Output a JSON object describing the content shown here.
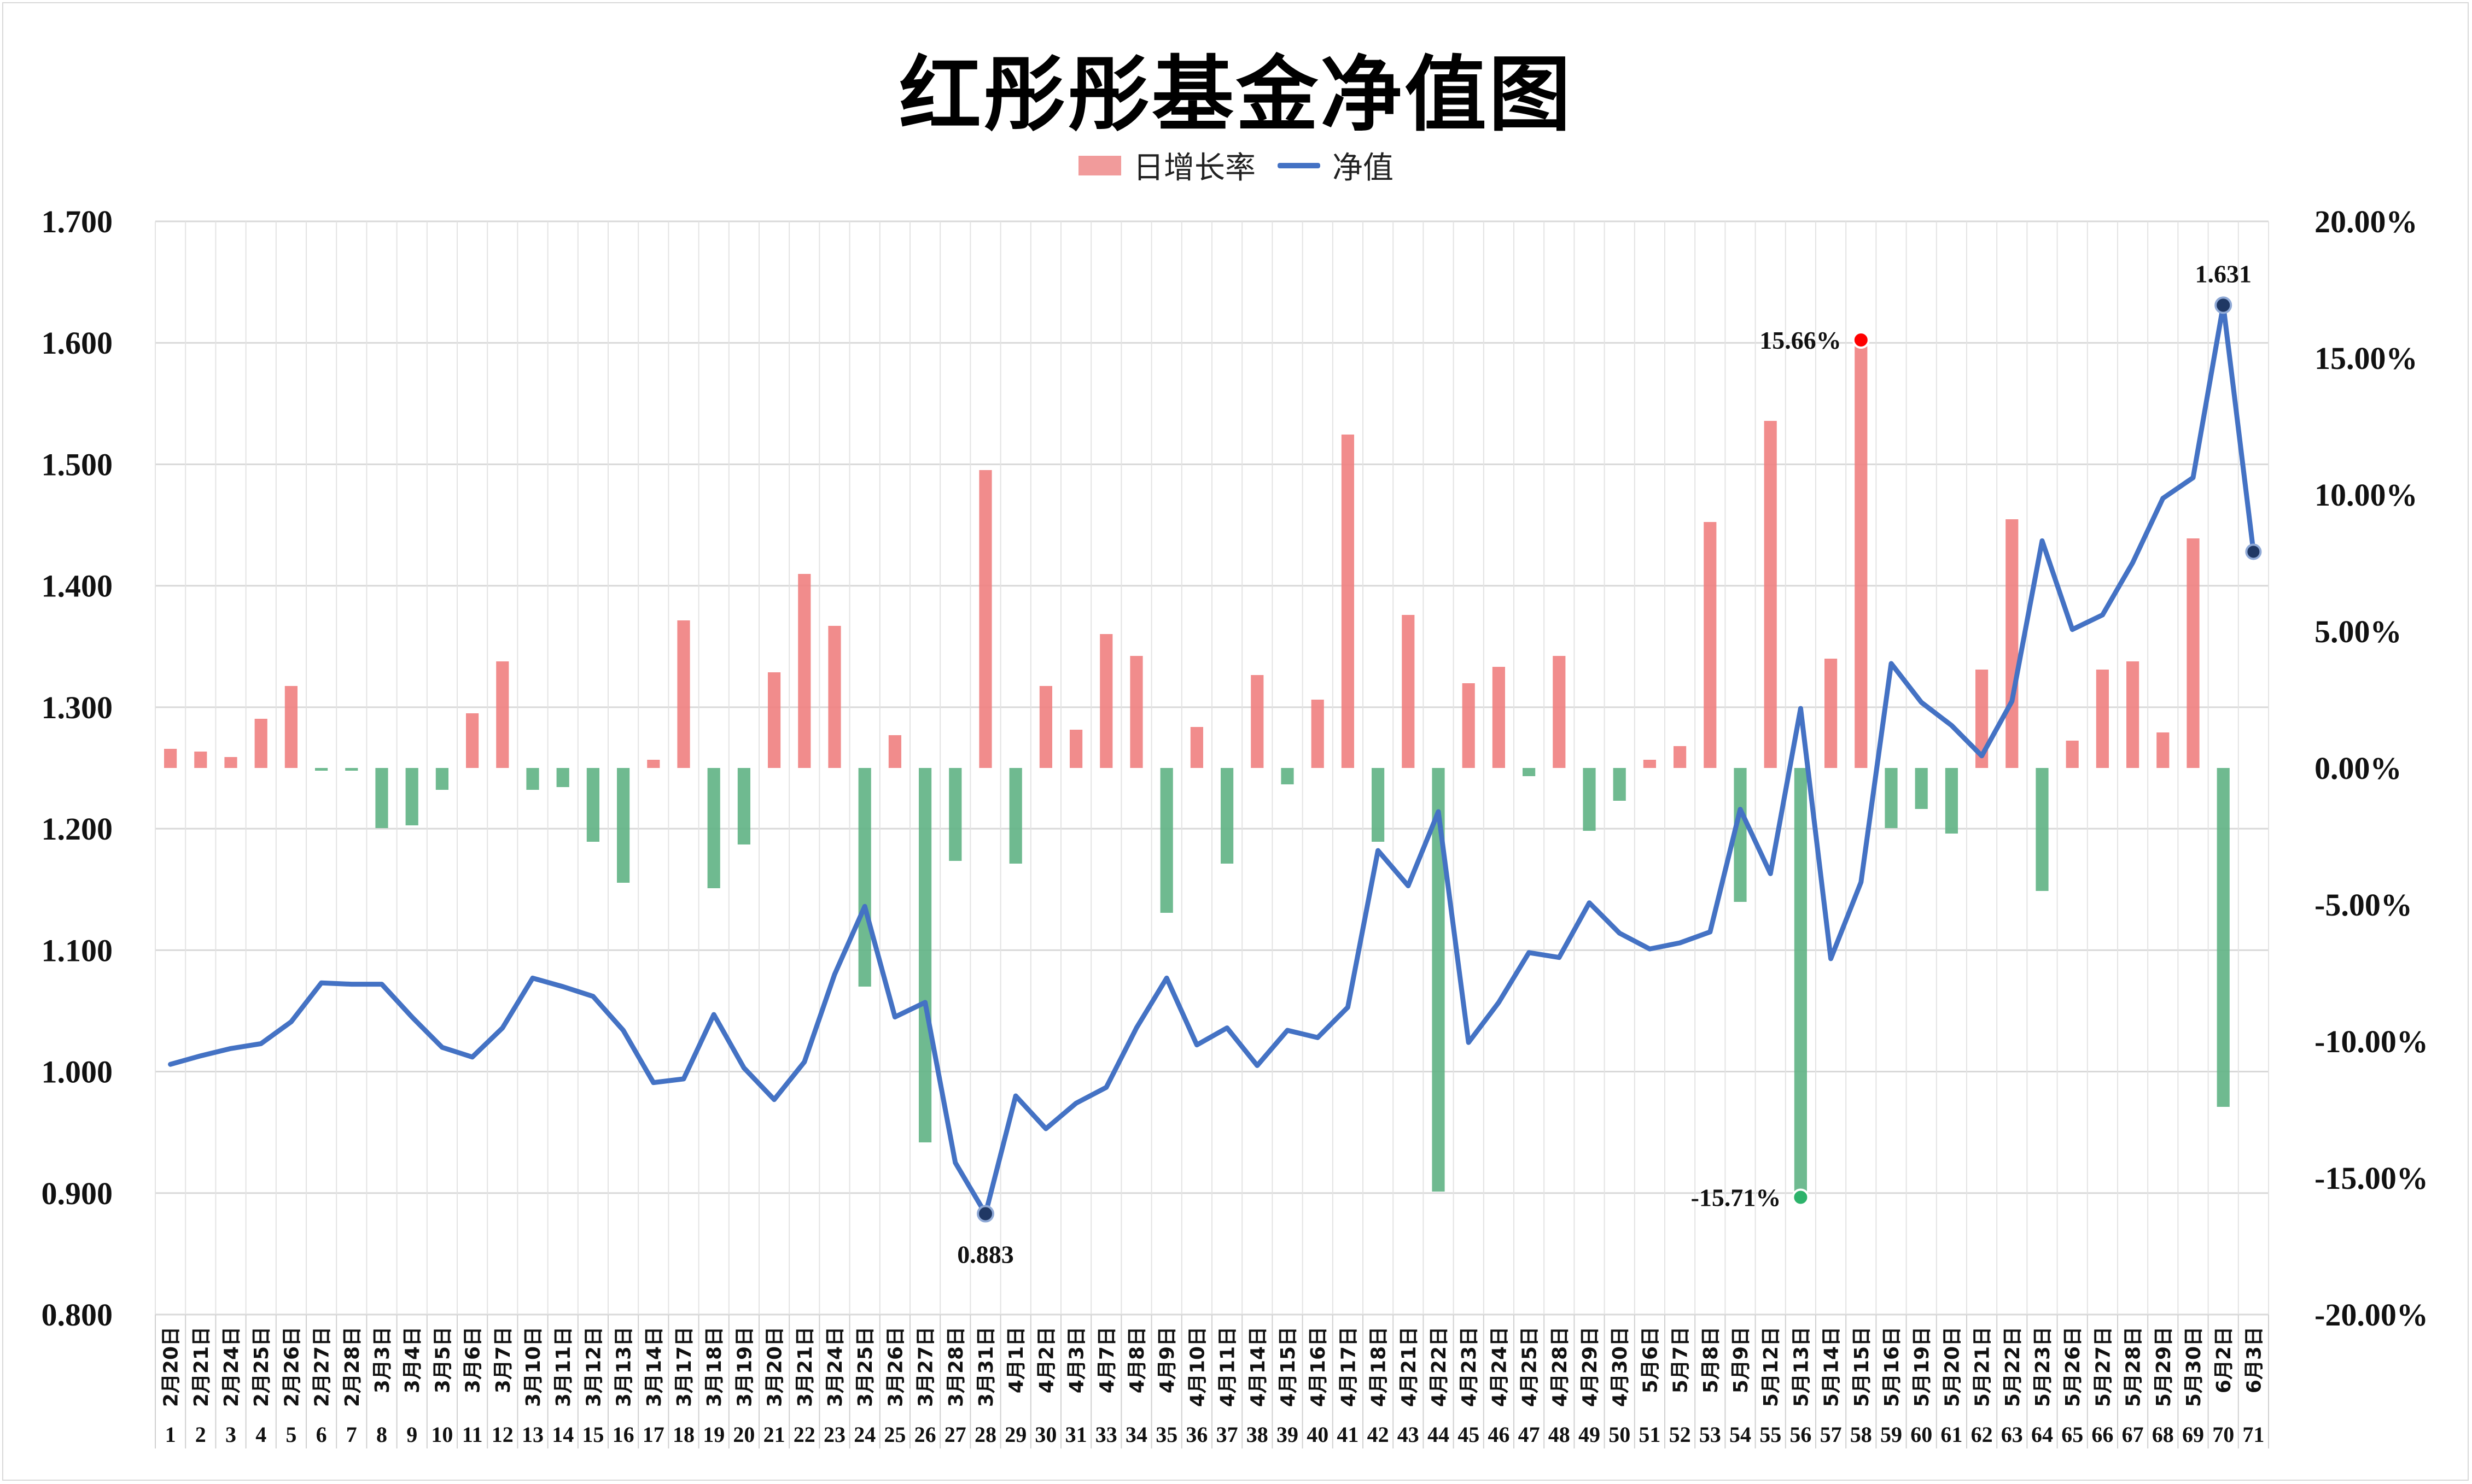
{
  "chart_data": {
    "type": "bar+line",
    "title": "红彤彤基金净值图",
    "legend": [
      "日增长率",
      "净值"
    ],
    "legend_position": "top-center",
    "grid": true,
    "colors": {
      "bar_up": "#f08080",
      "bar_down": "#5fb384",
      "line": "#4472c4",
      "marker_max_rate": "#ff0000",
      "marker_min_rate": "#2db36b",
      "marker_nav": "#203864"
    },
    "y_left": {
      "label": "",
      "range": [
        0.8,
        1.7
      ],
      "ticks": [
        "0.800",
        "0.900",
        "1.000",
        "1.100",
        "1.200",
        "1.300",
        "1.400",
        "1.500",
        "1.600",
        "1.700"
      ]
    },
    "y_right": {
      "label": "",
      "range": [
        -20,
        20
      ],
      "ticks": [
        "-20.00%",
        "-15.00%",
        "-10.00%",
        "-5.00%",
        "0.00%",
        "5.00%",
        "10.00%",
        "15.00%",
        "20.00%"
      ]
    },
    "dates": [
      "2月20日",
      "2月21日",
      "2月24日",
      "2月25日",
      "2月26日",
      "2月27日",
      "2月28日",
      "3月3日",
      "3月4日",
      "3月5日",
      "3月6日",
      "3月7日",
      "3月10日",
      "3月11日",
      "3月12日",
      "3月13日",
      "3月14日",
      "3月17日",
      "3月18日",
      "3月19日",
      "3月20日",
      "3月21日",
      "3月24日",
      "3月25日",
      "3月26日",
      "3月27日",
      "3月28日",
      "3月31日",
      "4月1日",
      "4月2日",
      "4月3日",
      "4月7日",
      "4月8日",
      "4月9日",
      "4月10日",
      "4月11日",
      "4月14日",
      "4月15日",
      "4月16日",
      "4月17日",
      "4月18日",
      "4月21日",
      "4月22日",
      "4月23日",
      "4月24日",
      "4月25日",
      "4月28日",
      "4月29日",
      "4月30日",
      "5月6日",
      "5月7日",
      "5月8日",
      "5月9日",
      "5月12日",
      "5月13日",
      "5月14日",
      "5月15日",
      "5月16日",
      "5月19日",
      "5月20日",
      "5月21日",
      "5月22日",
      "5月23日",
      "5月26日",
      "5月27日",
      "5月28日",
      "5月29日",
      "5月30日",
      "6月2日",
      "6月3日"
    ],
    "index": [
      "1",
      "2",
      "3",
      "4",
      "5",
      "6",
      "7",
      "8",
      "9",
      "10",
      "11",
      "12",
      "13",
      "14",
      "15",
      "16",
      "17",
      "18",
      "19",
      "20",
      "21",
      "22",
      "23",
      "24",
      "25",
      "26",
      "27",
      "28",
      "29",
      "30",
      "31",
      "33",
      "34",
      "35",
      "36",
      "37",
      "38",
      "39",
      "40",
      "41",
      "42",
      "43",
      "44",
      "45",
      "46",
      "47",
      "48",
      "49",
      "50",
      "51",
      "52",
      "53",
      "54",
      "55",
      "56",
      "57",
      "58",
      "59",
      "60",
      "61",
      "62",
      "63",
      "64",
      "65",
      "66",
      "67",
      "68",
      "69",
      "70",
      "71"
    ],
    "nav": [
      1.006,
      1.013,
      1.019,
      1.023,
      1.041,
      1.073,
      1.072,
      1.072,
      1.045,
      1.02,
      1.012,
      1.036,
      1.077,
      1.07,
      1.062,
      1.034,
      0.991,
      0.994,
      1.047,
      1.003,
      0.977,
      1.008,
      1.08,
      1.136,
      1.045,
      1.057,
      0.925,
      0.883,
      0.98,
      0.953,
      0.974,
      0.987,
      1.036,
      1.077,
      1.022,
      1.036,
      1.005,
      1.034,
      1.028,
      1.053,
      1.182,
      1.153,
      1.214,
      1.024,
      1.057,
      1.098,
      1.094,
      1.139,
      1.114,
      1.101,
      1.106,
      1.115,
      1.216,
      1.163,
      1.299,
      1.093,
      1.156,
      1.336,
      1.304,
      1.285,
      1.26,
      1.305,
      1.437,
      1.364,
      1.376,
      1.419,
      1.472,
      1.489,
      1.631,
      1.428
    ],
    "daily_rate_pct": [
      0.7,
      0.6,
      0.4,
      1.8,
      3.0,
      -0.1,
      -0.1,
      -2.2,
      -2.1,
      -0.8,
      2.0,
      3.9,
      -0.8,
      -0.7,
      -2.7,
      -4.2,
      0.3,
      5.4,
      -4.4,
      -2.8,
      3.5,
      7.1,
      5.2,
      -8.0,
      1.2,
      -13.7,
      -3.4,
      10.9,
      -3.5,
      3.0,
      1.4,
      4.9,
      4.1,
      -5.3,
      1.5,
      -3.5,
      3.4,
      -0.6,
      2.5,
      12.2,
      -2.7,
      5.6,
      -15.5,
      3.1,
      3.7,
      -0.3,
      4.1,
      -2.3,
      -1.2,
      0.3,
      0.8,
      9.0,
      -4.9,
      12.7,
      -15.71,
      4.0,
      15.66,
      -2.2,
      -1.5,
      -2.4,
      3.6,
      9.1,
      -4.5,
      1.0,
      3.6,
      3.9,
      1.3,
      8.4,
      -12.4
    ],
    "annotations": {
      "max_rate": "15.66%",
      "min_rate": "-15.71%",
      "min_nav": "0.883",
      "max_nav": "1.631"
    }
  }
}
